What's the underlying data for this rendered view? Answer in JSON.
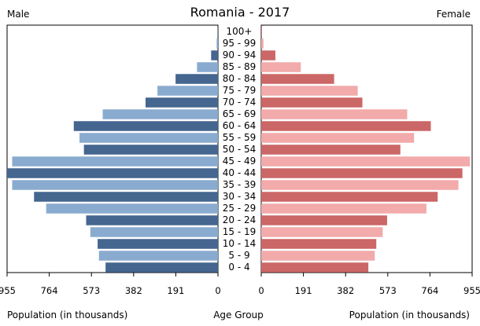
{
  "chart_data": {
    "type": "bar",
    "title": "Romania - 2017",
    "left_label": "Male",
    "right_label": "Female",
    "xlabel_left": "Population (in thousands)",
    "xlabel_right": "Population (in thousands)",
    "center_label": "Age Group",
    "xlim": [
      0,
      955
    ],
    "tick_values": [
      955,
      764,
      573,
      382,
      191,
      0
    ],
    "tick_labels_left": [
      "955",
      "764",
      "573",
      "382",
      "191",
      "0"
    ],
    "tick_labels_right": [
      "0",
      "191",
      "382",
      "573",
      "764",
      "955"
    ],
    "categories": [
      "100+",
      "95 - 99",
      "90 - 94",
      "85 - 89",
      "80 - 84",
      "75 - 79",
      "70 - 74",
      "65 - 69",
      "60 - 64",
      "55 - 59",
      "50 - 54",
      "45 - 49",
      "40 - 44",
      "35 - 39",
      "30 - 34",
      "25 - 29",
      "20 - 24",
      "15 - 19",
      "10 - 14",
      "5 - 9",
      "0 - 4"
    ],
    "series": [
      {
        "name": "Male",
        "values": [
          1,
          6,
          31,
          95,
          192,
          274,
          328,
          522,
          653,
          627,
          607,
          932,
          955,
          932,
          833,
          778,
          597,
          578,
          545,
          539,
          509
        ]
      },
      {
        "name": "Female",
        "values": [
          3,
          10,
          64,
          179,
          330,
          437,
          458,
          661,
          768,
          692,
          630,
          945,
          911,
          893,
          799,
          748,
          570,
          550,
          521,
          514,
          485
        ]
      }
    ],
    "colors": {
      "male_dark": "#44668f",
      "male_light": "#8aabd0",
      "female_dark": "#cc6767",
      "female_light": "#f2aaaa",
      "axis": "#000000"
    }
  }
}
